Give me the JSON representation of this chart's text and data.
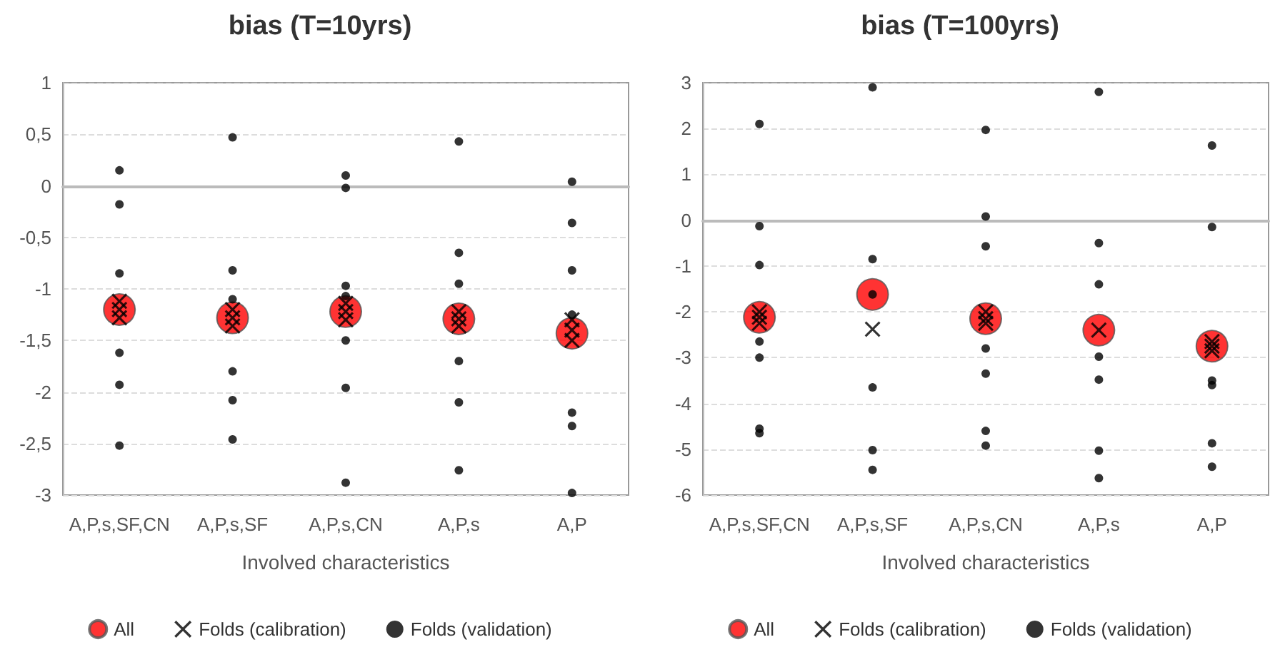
{
  "chart_data": [
    {
      "type": "scatter",
      "title": "bias (T=10yrs)",
      "xlabel": "Involved characteristics",
      "categories": [
        "A,P,s,SF,CN",
        "A,P,s,SF",
        "A,P,s,CN",
        "A,P,s",
        "A,P"
      ],
      "ylim": [
        -3,
        1
      ],
      "yticks": [
        -3,
        {
          "value": -2.5,
          "label": "-2,5"
        },
        -2,
        {
          "value": -1.5,
          "label": "-1,5"
        },
        -1,
        {
          "value": -0.5,
          "label": "-0,5"
        },
        0,
        {
          "value": 0.5,
          "label": "0,5"
        },
        1
      ],
      "grid": "y",
      "legend": "bottom",
      "series": [
        {
          "name": "All",
          "color": "#ff0000",
          "marker": "circle",
          "x": [
            "A,P,s,SF,CN",
            "A,P,s,SF",
            "A,P,s,CN",
            "A,P,s",
            "A,P"
          ],
          "values": [
            -1.2,
            -1.28,
            -1.22,
            -1.29,
            -1.43
          ]
        },
        {
          "name": "Folds (calibration)",
          "color": "#000000",
          "marker": "cross",
          "x": [
            "A,P,s,SF,CN",
            "A,P,s,SF,CN",
            "A,P,s,SF,CN",
            "A,P,s,SF",
            "A,P,s,SF",
            "A,P,s,SF",
            "A,P,s,CN",
            "A,P,s,CN",
            "A,P,s,CN",
            "A,P,s",
            "A,P,s",
            "A,P,s",
            "A,P",
            "A,P",
            "A,P"
          ],
          "values": [
            -1.12,
            -1.2,
            -1.28,
            -1.2,
            -1.28,
            -1.36,
            -1.14,
            -1.22,
            -1.3,
            -1.22,
            -1.29,
            -1.36,
            -1.3,
            -1.4,
            -1.5
          ]
        },
        {
          "name": "Folds (validation)",
          "color": "#000000",
          "marker": "circle",
          "x": [
            "A,P,s,SF,CN",
            "A,P,s,SF,CN",
            "A,P,s,SF,CN",
            "A,P,s,SF,CN",
            "A,P,s,SF,CN",
            "A,P,s,SF,CN",
            "A,P,s,SF",
            "A,P,s,SF",
            "A,P,s,SF",
            "A,P,s,SF",
            "A,P,s,SF",
            "A,P,s,SF",
            "A,P,s,CN",
            "A,P,s,CN",
            "A,P,s,CN",
            "A,P,s,CN",
            "A,P,s,CN",
            "A,P,s,CN",
            "A,P,s,CN",
            "A,P,s",
            "A,P,s",
            "A,P,s",
            "A,P,s",
            "A,P,s",
            "A,P,s",
            "A,P",
            "A,P",
            "A,P",
            "A,P",
            "A,P",
            "A,P",
            "A,P"
          ],
          "values": [
            0.15,
            -0.18,
            -0.85,
            -1.62,
            -1.93,
            -2.52,
            0.47,
            -0.82,
            -1.1,
            -1.8,
            -2.08,
            -2.46,
            0.1,
            -0.02,
            -0.97,
            -1.07,
            -1.5,
            -1.96,
            -2.88,
            0.43,
            -0.65,
            -0.95,
            -1.7,
            -2.1,
            -2.76,
            0.04,
            -0.36,
            -0.82,
            -1.25,
            -2.2,
            -2.33,
            -2.98
          ]
        }
      ]
    },
    {
      "type": "scatter",
      "title": "bias (T=100yrs)",
      "xlabel": "Involved characteristics",
      "categories": [
        "A,P,s,SF,CN",
        "A,P,s,SF",
        "A,P,s,CN",
        "A,P,s",
        "A,P"
      ],
      "ylim": [
        -6,
        3
      ],
      "yticks": [
        -6,
        -5,
        -4,
        -3,
        -2,
        -1,
        0,
        1,
        2,
        3
      ],
      "grid": "y",
      "legend": "bottom",
      "series": [
        {
          "name": "All",
          "color": "#ff0000",
          "marker": "circle",
          "x": [
            "A,P,s,SF,CN",
            "A,P,s,SF",
            "A,P,s,CN",
            "A,P,s",
            "A,P"
          ],
          "values": [
            -2.12,
            -1.62,
            -2.15,
            -2.4,
            -2.75
          ]
        },
        {
          "name": "Folds (calibration)",
          "color": "#000000",
          "marker": "cross",
          "x": [
            "A,P,s,SF,CN",
            "A,P,s,SF,CN",
            "A,P,s,SF,CN",
            "A,P,s,SF",
            "A,P,s,CN",
            "A,P,s,CN",
            "A,P,s,CN",
            "A,P,s",
            "A,P",
            "A,P",
            "A,P"
          ],
          "values": [
            -2.0,
            -2.12,
            -2.25,
            -2.38,
            -2.0,
            -2.15,
            -2.25,
            -2.4,
            -2.65,
            -2.75,
            -2.85
          ]
        },
        {
          "name": "Folds (validation)",
          "color": "#000000",
          "marker": "circle",
          "x": [
            "A,P,s,SF,CN",
            "A,P,s,SF,CN",
            "A,P,s,SF,CN",
            "A,P,s,SF,CN",
            "A,P,s,SF,CN",
            "A,P,s,SF,CN",
            "A,P,s,SF,CN",
            "A,P,s,SF",
            "A,P,s,SF",
            "A,P,s,SF",
            "A,P,s,SF",
            "A,P,s,SF",
            "A,P,s,SF",
            "A,P,s,CN",
            "A,P,s,CN",
            "A,P,s,CN",
            "A,P,s,CN",
            "A,P,s,CN",
            "A,P,s,CN",
            "A,P,s,CN",
            "A,P,s",
            "A,P,s",
            "A,P,s",
            "A,P,s",
            "A,P,s",
            "A,P,s",
            "A,P,s",
            "A,P",
            "A,P",
            "A,P",
            "A,P",
            "A,P",
            "A,P"
          ],
          "values": [
            2.1,
            -0.13,
            -0.98,
            -2.65,
            -3.0,
            -4.55,
            -4.65,
            2.9,
            -0.85,
            -1.62,
            -3.65,
            -5.02,
            -5.45,
            1.97,
            0.08,
            -0.57,
            -2.8,
            -3.35,
            -4.6,
            -4.92,
            2.8,
            -0.5,
            -1.4,
            -2.98,
            -3.48,
            -5.03,
            -5.63,
            1.63,
            -0.15,
            -3.5,
            -3.6,
            -4.87,
            -5.38
          ]
        }
      ]
    }
  ]
}
